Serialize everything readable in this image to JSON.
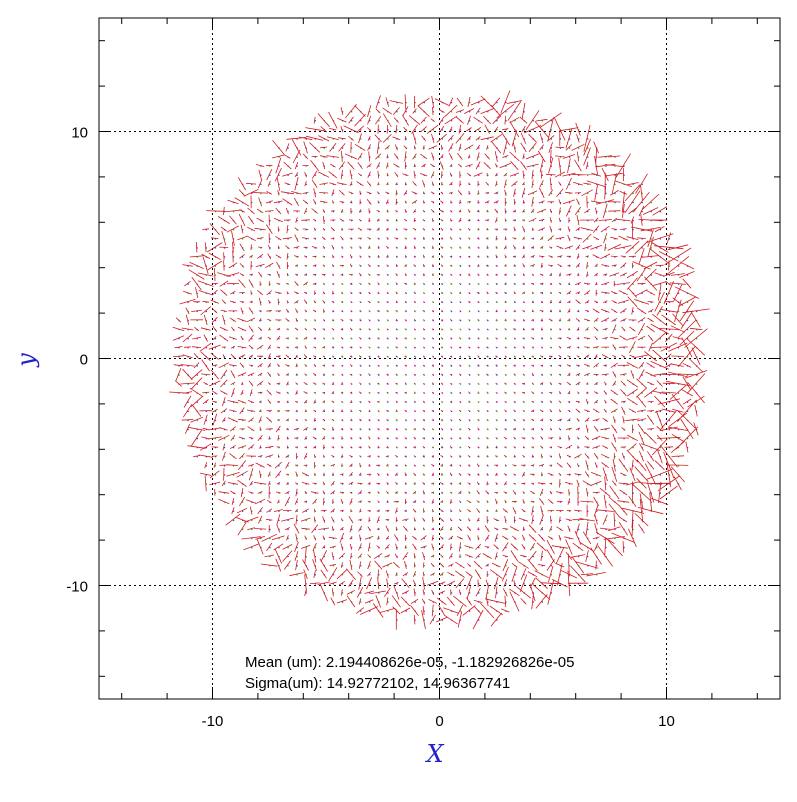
{
  "chart_data": {
    "type": "scatter",
    "subtype": "vector-field",
    "title": "",
    "xlabel": "X",
    "ylabel": "y",
    "xlim": [
      -15,
      15
    ],
    "ylim": [
      -15,
      15
    ],
    "x_ticks": [
      -10,
      0,
      10
    ],
    "y_ticks": [
      -10,
      0,
      10
    ],
    "x_tick_labels": [
      "-10",
      "0",
      "10"
    ],
    "y_tick_labels": [
      "-10",
      "0",
      "10"
    ],
    "grid": true,
    "grid_style": "dotted",
    "region": {
      "shape": "circle",
      "center": [
        0,
        0
      ],
      "radius": 11.5
    },
    "grid_spacing": 0.4,
    "series": [
      {
        "role": "vector-residuals",
        "color": "#d11a1a"
      },
      {
        "role": "grid-points",
        "colors": [
          "#cc00cc",
          "#22aa22",
          "#2255cc"
        ]
      }
    ],
    "annotations": [
      {
        "key": "mean",
        "text": "Mean (um): 2.194408626e-05, -1.182926826e-05"
      },
      {
        "key": "sigma",
        "text": "Sigma(um): 14.92772102, 14.96367741"
      }
    ]
  },
  "colors": {
    "axis": "#000000",
    "axis_title": "#2222cc",
    "grid": "#000000",
    "vector": "#d11a1a"
  }
}
